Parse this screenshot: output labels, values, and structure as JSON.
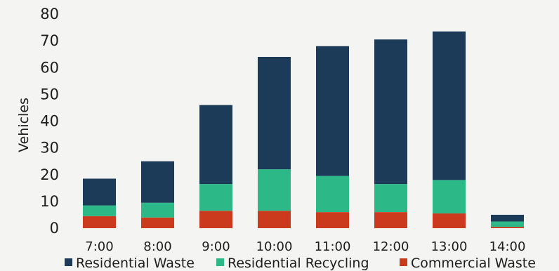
{
  "chart_data": {
    "type": "bar",
    "stacked": true,
    "categories": [
      "7:00",
      "8:00",
      "9:00",
      "10:00",
      "11:00",
      "12:00",
      "13:00",
      "14:00"
    ],
    "series": [
      {
        "name": "Commercial Waste",
        "color": "#cc3a1e",
        "values": [
          4.5,
          4,
          6.5,
          6.5,
          6,
          6,
          5.5,
          0.5
        ]
      },
      {
        "name": "Residential Recycling",
        "color": "#2db888",
        "values": [
          4,
          5.5,
          10,
          15.5,
          13.5,
          10.5,
          12.5,
          2
        ]
      },
      {
        "name": "Residential Waste",
        "color": "#1b3b58",
        "values": [
          10,
          15.5,
          29.5,
          42,
          48.5,
          54,
          55.5,
          2.5
        ]
      }
    ],
    "legend_order": [
      "Residential Waste",
      "Residential Recycling",
      "Commercial Waste"
    ],
    "legend_position": "bottom",
    "ylabel": "Vehicles",
    "xlabel": "",
    "ylim": [
      0,
      80
    ],
    "yticks": [
      0,
      10,
      20,
      30,
      40,
      50,
      60,
      70,
      80
    ],
    "grid": false
  }
}
